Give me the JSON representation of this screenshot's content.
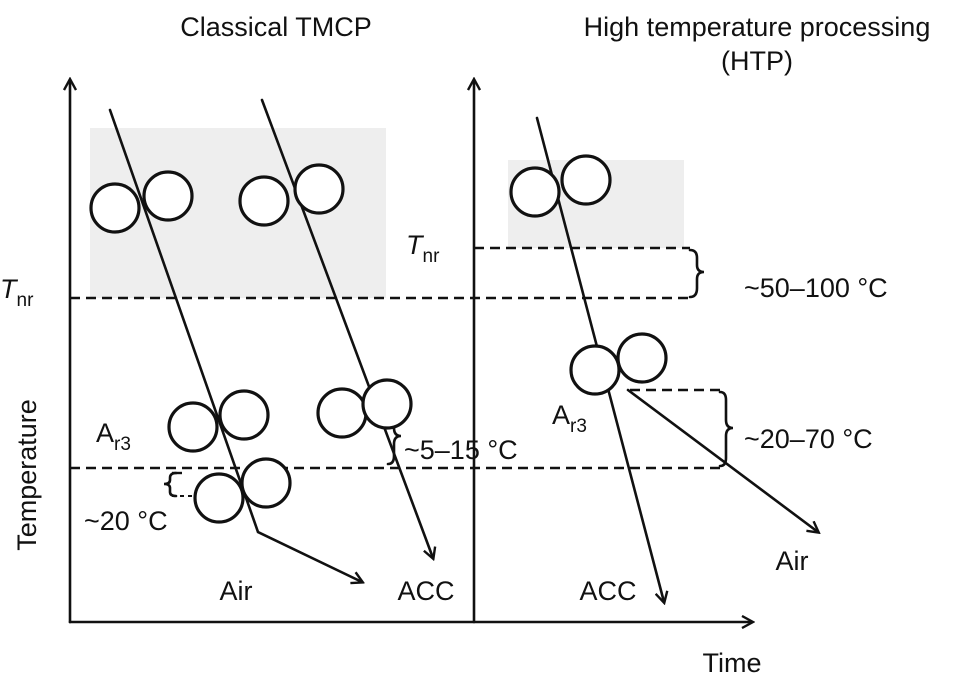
{
  "panels": {
    "left_title": "Classical TMCP",
    "right_title_line1": "High temperature processing",
    "right_title_line2": "(HTP)"
  },
  "axes": {
    "y_label": "Temperature",
    "x_label": "Time"
  },
  "labels": {
    "tnr_main": "T",
    "tnr_sub": "nr",
    "ar3_main": "A",
    "ar3_sub": "r3",
    "air": "Air",
    "acc": "ACC",
    "gap_tnr_htp": "~50–100 °C",
    "gap_ar3_acc": "~5–15 °C",
    "gap_ar3_air": "~20 °C",
    "gap_ar3_htp": "~20–70 °C"
  },
  "colors": {
    "line": "#111111",
    "shade": "#eeeeee"
  }
}
